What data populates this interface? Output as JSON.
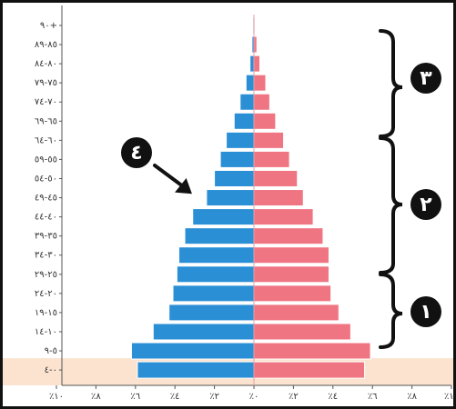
{
  "chart_data": {
    "type": "population-pyramid",
    "categories": [
      "٤-٠",
      "٩-٥",
      "١٤-١٠",
      "١٩-١٥",
      "٢٤-٢٠",
      "٢٩-٢٥",
      "٣٤-٣٠",
      "٣٩-٣٥",
      "٤٤-٤٠",
      "٤٩-٤٥",
      "٥٤-٥٠",
      "٥٩-٥٥",
      "٦٤-٦٠",
      "٦٩-٦٥",
      "٧٤-٧٠",
      "٧٩-٧٥",
      "٨٤-٨٠",
      "٨٩-٨٥",
      "٩٠+"
    ],
    "series": [
      {
        "color": "#2b8fd6",
        "side": "left",
        "values": [
          5.9,
          6.2,
          5.1,
          4.3,
          4.1,
          3.9,
          3.8,
          3.5,
          3.1,
          2.4,
          2.0,
          1.7,
          1.4,
          1.0,
          0.7,
          0.4,
          0.2,
          0.1,
          0.05
        ]
      },
      {
        "color": "#f07583",
        "side": "right",
        "values": [
          5.6,
          5.9,
          4.9,
          4.3,
          3.9,
          3.8,
          3.8,
          3.5,
          3.0,
          2.5,
          2.2,
          1.8,
          1.5,
          1.1,
          0.8,
          0.6,
          0.3,
          0.15,
          0.05
        ]
      }
    ],
    "xlim": [
      -10,
      10
    ],
    "xticks": [
      {
        "value": -10,
        "label": "٪١٠"
      },
      {
        "value": -8,
        "label": "٪٨"
      },
      {
        "value": -6,
        "label": "٪٦"
      },
      {
        "value": -4,
        "label": "٪٤"
      },
      {
        "value": -2,
        "label": "٪٢"
      },
      {
        "value": 0,
        "label": "٪٠"
      },
      {
        "value": 2,
        "label": "٪٢"
      },
      {
        "value": 4,
        "label": "٪٤"
      },
      {
        "value": 6,
        "label": "٪٦"
      },
      {
        "value": 8,
        "label": "٪٨"
      },
      {
        "value": 10,
        "label": "٪١٠"
      }
    ],
    "highlight_color": "#fbe3cf",
    "annotations": [
      "٣",
      "٢",
      "١",
      "٤"
    ]
  }
}
